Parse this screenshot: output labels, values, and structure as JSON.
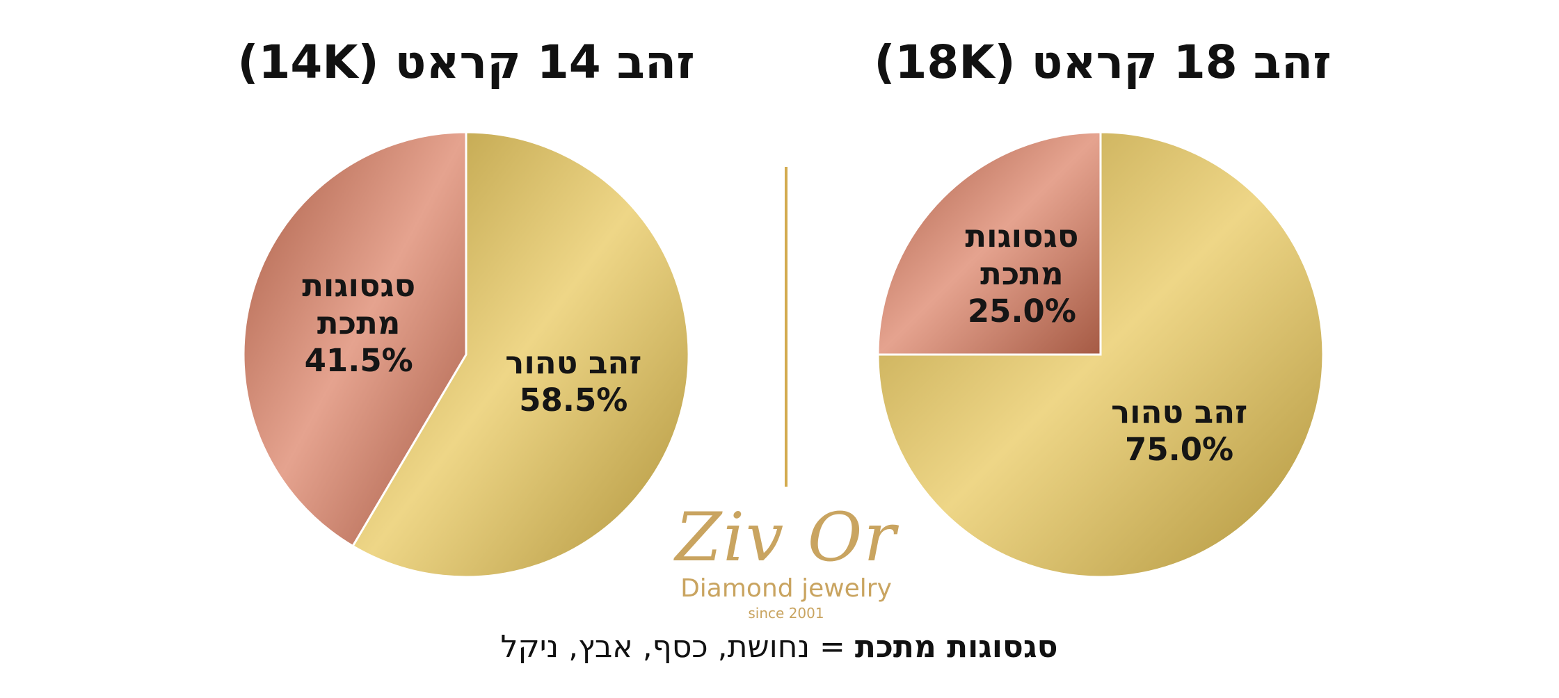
{
  "chart_data": [
    {
      "type": "pie",
      "title": "זהב 14 קראט (14K)",
      "slices": [
        {
          "label": "זהב טהור",
          "value": 58.5,
          "value_label": "58.5%",
          "color": "#e6c24e"
        },
        {
          "label": "סגסוגות מתכת",
          "value": 41.5,
          "value_label": "41.5%",
          "color": "#d9775a"
        }
      ]
    },
    {
      "type": "pie",
      "title": "זהב 18 קראט (18K)",
      "slices": [
        {
          "label": "זהב טהור",
          "value": 75.0,
          "value_label": "75.0%",
          "color": "#e6c24e"
        },
        {
          "label": "סגסוגות מתכת",
          "value": 25.0,
          "value_label": "25.0%",
          "color": "#d9775a"
        }
      ]
    }
  ],
  "logo": {
    "name": "Ziv Or",
    "tagline": "Diamond jewelry",
    "since": "since 2001"
  },
  "footnote": {
    "term": "סגסוגות מתכת",
    "definition": "= נחושת, כסף, אבץ, ניקל"
  },
  "colors": {
    "gold": "#e6c24e",
    "copper": "#d9775a",
    "divider": "#d3ab4f",
    "logo": "#c9a460"
  }
}
